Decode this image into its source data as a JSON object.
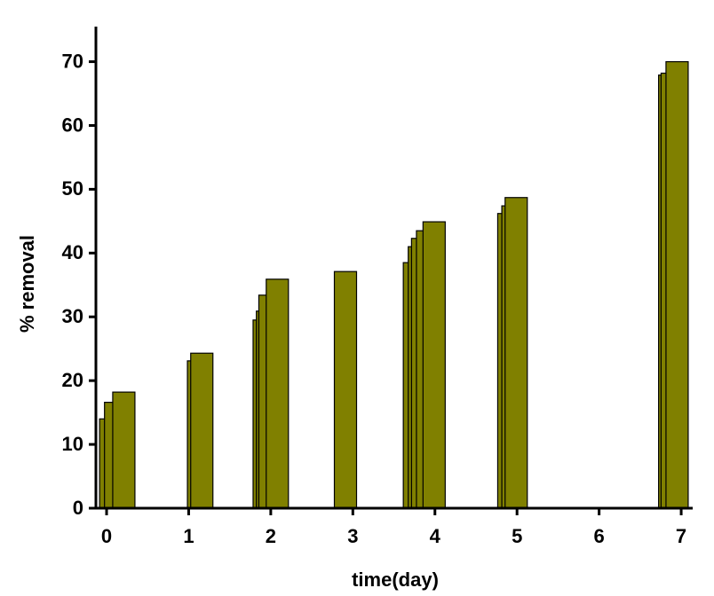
{
  "chart_data": {
    "type": "bar",
    "x_label": "time(day)",
    "y_label": "% removal",
    "x": [
      0.05,
      0.11,
      0.21,
      1.12,
      1.16,
      1.92,
      1.96,
      1.99,
      2.08,
      2.91,
      3.75,
      3.81,
      3.85,
      3.91,
      3.99,
      4.9,
      4.95,
      4.99,
      6.86,
      6.89,
      6.95
    ],
    "values": [
      14.0,
      16.6,
      18.2,
      23.1,
      24.3,
      29.5,
      30.9,
      33.4,
      35.9,
      37.1,
      38.5,
      41.0,
      42.3,
      43.5,
      44.9,
      46.2,
      47.4,
      48.7,
      67.9,
      68.2,
      70.0
    ],
    "color": "#808000",
    "xlim": [
      -0.13,
      7.14
    ],
    "xticks": [
      0,
      1,
      2,
      3,
      4,
      5,
      6,
      7
    ],
    "ylim": [
      0,
      75.5
    ],
    "yticks": [
      0,
      10,
      20,
      30,
      40,
      50,
      60,
      70
    ]
  }
}
